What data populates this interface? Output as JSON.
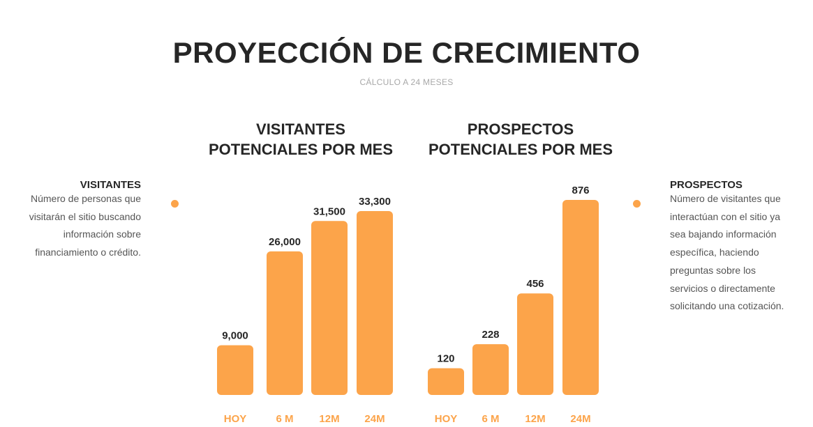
{
  "header": {
    "title": "PROYECCIÓN DE CRECIMIENTO",
    "subtitle": "CÁLCULO A 24 MESES"
  },
  "colors": {
    "bar": "#fca44a",
    "dot": "#fca44a",
    "text": "#262626"
  },
  "left_panel": {
    "heading": "VISITANTES",
    "lines": [
      "Número de personas que",
      "visitarán el sitio buscando",
      "información sobre",
      "financiamiento o crédito."
    ]
  },
  "right_panel": {
    "heading": "PROSPECTOS",
    "lines": [
      "Número de visitantes que",
      "interactúan con el sitio ya",
      "sea bajando información",
      "específica, haciendo",
      "preguntas sobre los",
      "servicios o directamente",
      "solicitando una cotización."
    ]
  },
  "chart_data": [
    {
      "type": "bar",
      "title_lines": [
        "VISITANTES",
        "POTENCIALES POR MES"
      ],
      "categories": [
        "HOY",
        "6 M",
        "12M",
        "24M"
      ],
      "values": [
        9000,
        26000,
        31500,
        33300
      ],
      "value_labels": [
        "9,000",
        "26,000",
        "31,500",
        "33,300"
      ]
    },
    {
      "type": "bar",
      "title_lines": [
        "PROSPECTOS",
        "POTENCIALES POR MES"
      ],
      "categories": [
        "HOY",
        "6 M",
        "12M",
        "24M"
      ],
      "values": [
        120,
        228,
        456,
        876
      ],
      "value_labels": [
        "120",
        "228",
        "456",
        "876"
      ]
    }
  ]
}
